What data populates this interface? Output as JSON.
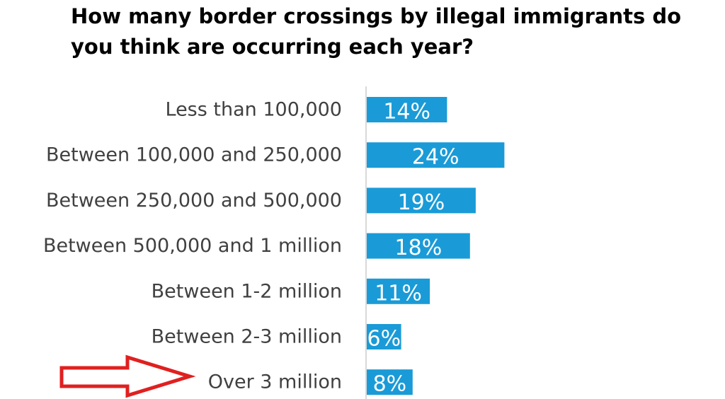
{
  "chart_data": {
    "type": "bar",
    "orientation": "horizontal",
    "title": "How many border crossings by illegal immigrants do you think are occurring each year?",
    "categories": [
      "Less than 100,000",
      "Between 100,000 and 250,000",
      "Between 250,000 and 500,000",
      "Between 500,000 and 1 million",
      "Between 1-2 million",
      "Between 2-3 million",
      "Over 3 million"
    ],
    "values": [
      14,
      24,
      19,
      18,
      11,
      6,
      8
    ],
    "data_labels": [
      "14%",
      "24%",
      "19%",
      "18%",
      "11%",
      "6%",
      "8%"
    ],
    "unit": "%",
    "grid": false,
    "legend": "none",
    "bar_color": "#1a9bd7",
    "axis_color": "#d9d9d9",
    "annotation": {
      "type": "arrow",
      "points_to": "Over 3 million",
      "color": "#e02020"
    }
  }
}
